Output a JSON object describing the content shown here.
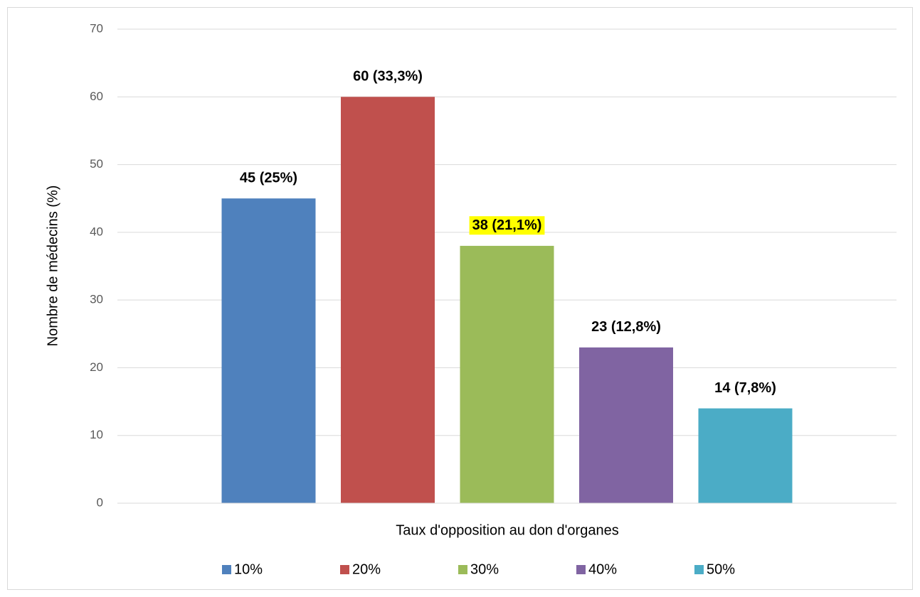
{
  "chart_data": {
    "type": "bar",
    "x_label": "Taux d'opposition au don d'organes",
    "y_label": "Nombre de médecins (%)",
    "categories": [
      null
    ],
    "series": [
      {
        "name": "10%",
        "color": "#4f81bd",
        "values": [
          45
        ],
        "value_labels": [
          "45 (25%)"
        ]
      },
      {
        "name": "20%",
        "color": "#c0504d",
        "values": [
          60
        ],
        "value_labels": [
          "60 (33,3%)"
        ]
      },
      {
        "name": "30%",
        "color": "#9bbb59",
        "values": [
          38
        ],
        "value_labels": [
          "38 (21,1%)"
        ],
        "label_background": "#ffff00"
      },
      {
        "name": "40%",
        "color": "#8064a2",
        "values": [
          23
        ],
        "value_labels": [
          "23 (12,8%)"
        ]
      },
      {
        "name": "50%",
        "color": "#4bacc6",
        "values": [
          14
        ],
        "value_labels": [
          "14 (7,8%)"
        ]
      }
    ],
    "ylim": [
      0,
      70
    ],
    "yticks": [
      0,
      10,
      20,
      30,
      40,
      50,
      60,
      70
    ],
    "grid": true,
    "legend": "bottom"
  }
}
